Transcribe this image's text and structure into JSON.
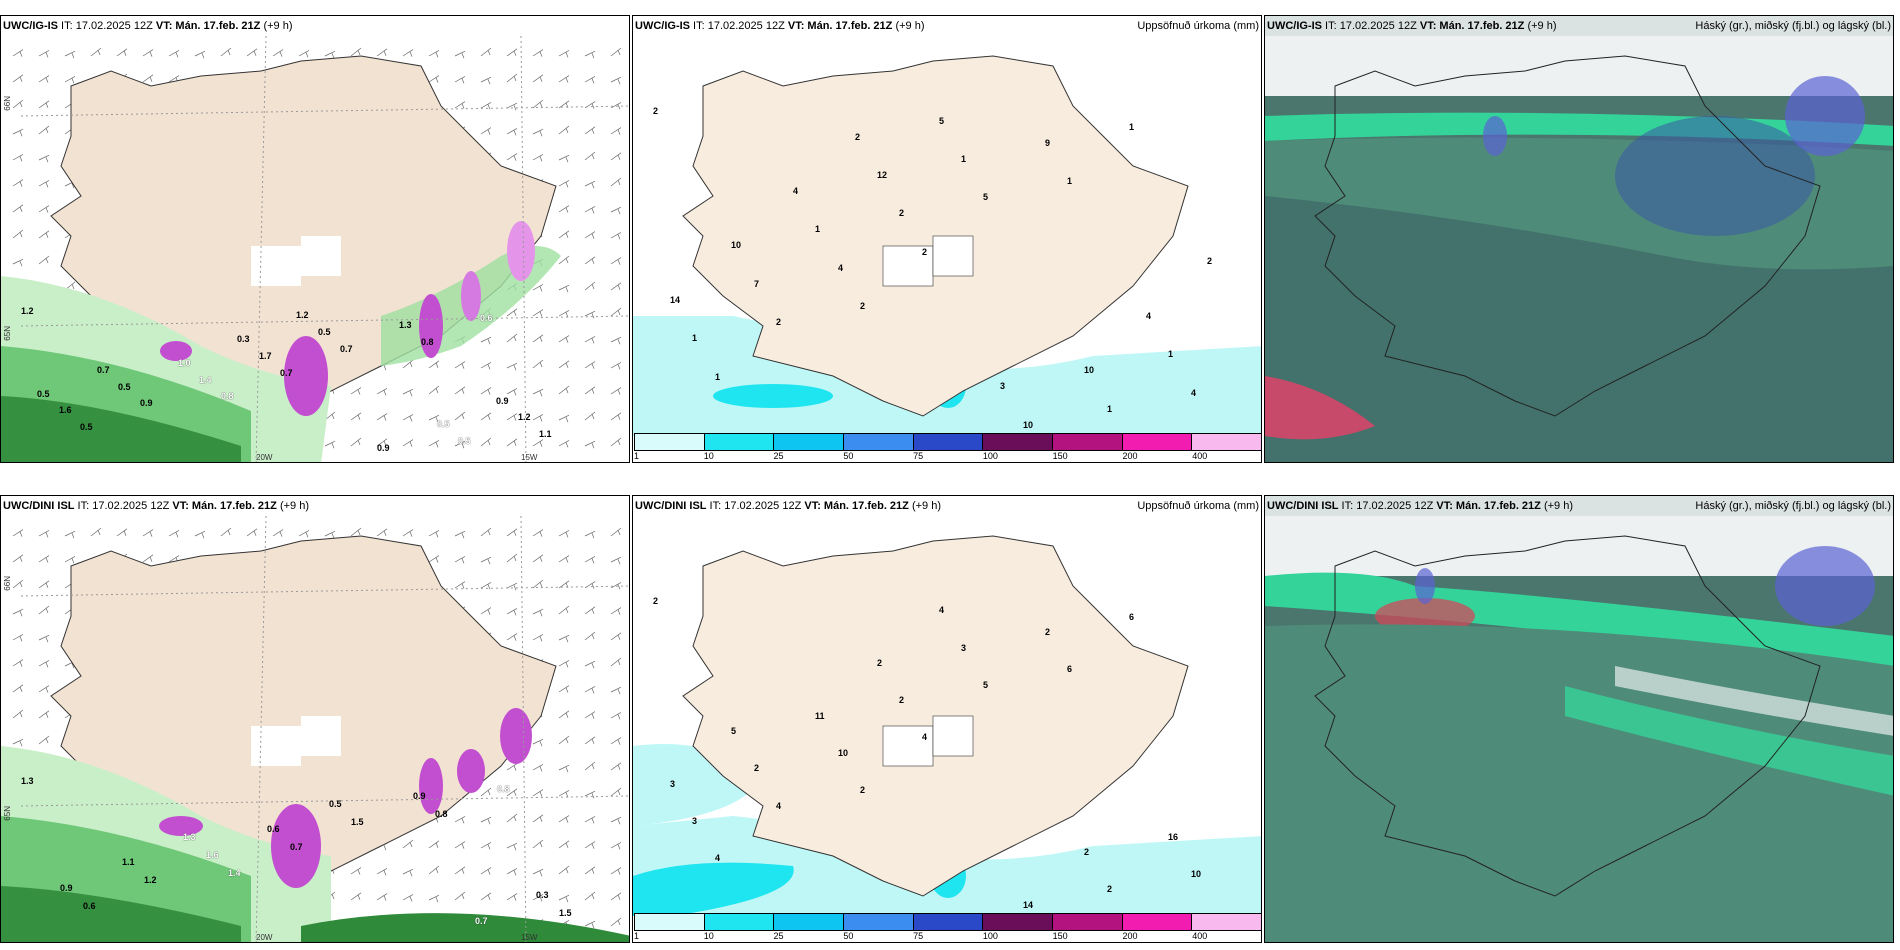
{
  "panels": {
    "tl": {
      "header": {
        "model": "UWC/IG-IS",
        "it_prefix": " IT: 17.02.2025 12Z ",
        "vt": "VT: Mán. 17.feb. 21Z",
        "lead": " (+9 h)"
      },
      "labels": [
        "1.2",
        "0.8",
        "0.8",
        "0.5",
        "0.7",
        "0.6",
        "0.9",
        "0.7",
        "1.1",
        "1.4",
        "1.3",
        "1.6",
        "1.7",
        "0.5",
        "0.5",
        "0.5",
        "1.2",
        "1.0",
        "0.9",
        "0.5",
        "0.3",
        "0.5",
        "0.7",
        "1.2",
        "0.9"
      ],
      "ticks": {
        "lat": "66N",
        "lat2": "65N",
        "lon1": "20W",
        "lon2": "15W"
      }
    },
    "tc": {
      "header": {
        "model": "UWC/IG-IS",
        "it_prefix": " IT: 17.02.2025 12Z ",
        "vt": "VT: Mán. 17.feb. 21Z",
        "lead": " (+9 h)",
        "title": "Uppsöfnuð úrkoma (mm)"
      },
      "labels": [
        "2",
        "2",
        "1",
        "1",
        "2",
        "1",
        "2",
        "5",
        "4",
        "4",
        "9",
        "1",
        "2",
        "1",
        "7",
        "1",
        "1",
        "1",
        "10",
        "14",
        "12",
        "10",
        "10",
        "5",
        "4",
        "4",
        "3",
        "2",
        "2"
      ]
    },
    "tr": {
      "header": {
        "model": "UWC/IG-IS",
        "it_prefix": " IT: 17.02.2025 12Z ",
        "vt": "VT: Mán. 17.feb. 21Z",
        "lead": " (+9 h)",
        "title": "Háský (gr.), miðský (fj.bl.) og lágský (bl.)"
      }
    },
    "bl": {
      "header": {
        "model": "UWC/DINI ISL",
        "it_prefix": " IT: 17.02.2025 12Z ",
        "vt": "VT: Mán. 17.feb. 21Z",
        "lead": " (+9 h)"
      },
      "labels": [
        "1.3",
        "1.4",
        "0.8",
        "0.6",
        "0.7",
        "0.8",
        "1.2",
        "1.5",
        "1.5",
        "1.6",
        "0.9",
        "0.9",
        "0.6",
        "0.7",
        "1.1",
        "0.5",
        "0.3",
        "1.3"
      ],
      "ticks": {
        "lat": "66N",
        "lat2": "65N",
        "lon1": "20W",
        "lon2": "15W"
      }
    },
    "bc": {
      "header": {
        "model": "UWC/DINI ISL",
        "it_prefix": " IT: 17.02.2025 12Z ",
        "vt": "VT: Mán. 17.feb. 21Z",
        "lead": " (+9 h)",
        "title": "Uppsöfnuð úrkoma (mm)"
      },
      "labels": [
        "2",
        "2",
        "6",
        "4",
        "4",
        "6",
        "4",
        "5",
        "10",
        "10",
        "2",
        "3",
        "2",
        "2",
        "2",
        "3",
        "16",
        "11",
        "14",
        "3",
        "2",
        "2",
        "5",
        "4"
      ]
    },
    "br": {
      "header": {
        "model": "UWC/DINI ISL",
        "it_prefix": " IT: 17.02.2025 12Z ",
        "vt": "VT: Mán. 17.feb. 21Z",
        "lead": " (+9 h)",
        "title": "Háský (gr.), miðský (fj.bl.) og lágský (bl.)"
      }
    }
  },
  "colorbar": {
    "labels": [
      "1",
      "10",
      "25",
      "50",
      "75",
      "100",
      "150",
      "200",
      "400"
    ],
    "colors": [
      "#d9fbfb",
      "#1ee5ef",
      "#0ec4f0",
      "#3b8ef0",
      "#2a49c9",
      "#6b0e5a",
      "#b3137e",
      "#f21cb0",
      "#f7b9ee"
    ]
  },
  "colors": {
    "land": "#f8ecdf",
    "coast": "#333333",
    "green_dark": "#2f8a3a",
    "green_light": "#c9efc9",
    "purple": "#c24fd0",
    "sea_rain": "#bff7f7",
    "cloud_bg": "#446f68",
    "cloud_green": "#34d39a",
    "cloud_blue": "#5b62d4",
    "cloud_red": "#d04a5a"
  }
}
